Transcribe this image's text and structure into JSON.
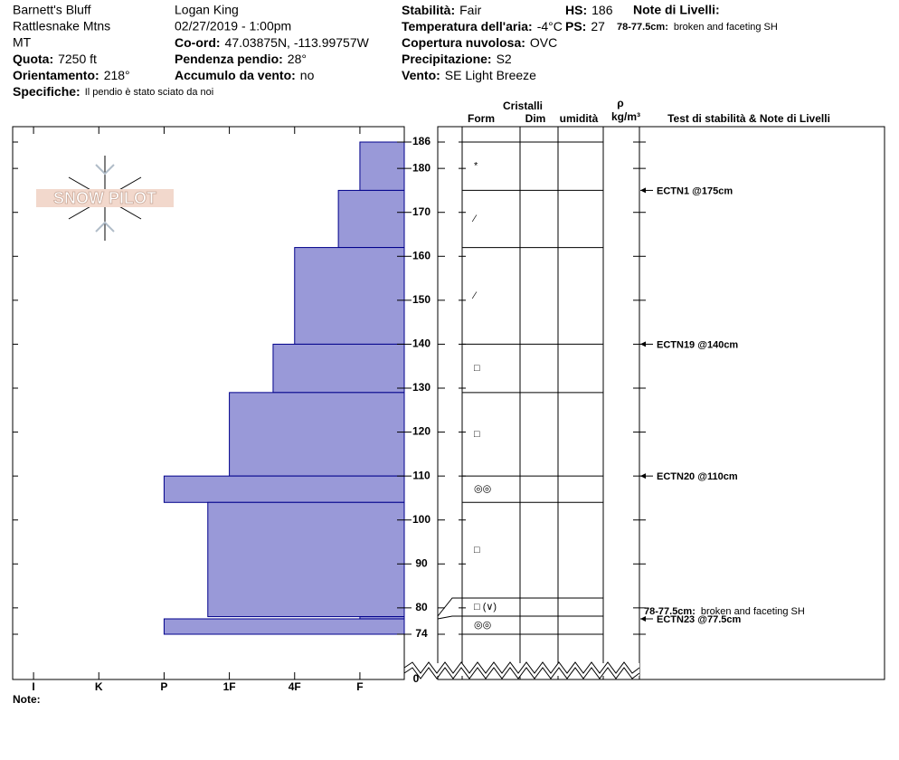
{
  "header": {
    "site": "Barnett's Bluff",
    "range": "Rattlesnake Mtns",
    "state": "MT",
    "observer": "Logan King",
    "datetime": "02/27/2019 - 1:00pm",
    "fields": [
      {
        "label": "Quota:",
        "value": "7250 ft"
      },
      {
        "label": "Orientamento:",
        "value": "218°"
      },
      {
        "label": "Specifiche:",
        "value": "Il pendio è stato sciato da noi"
      },
      {
        "label": "Co-ord:",
        "value": "47.03875N, -113.99757W"
      },
      {
        "label": "Pendenza pendio:",
        "value": "28°"
      },
      {
        "label": "Accumulo da vento:",
        "value": "no"
      },
      {
        "label": "Stabilità:",
        "value": "Fair"
      },
      {
        "label": "Temperatura dell'aria:",
        "value": "-4°C"
      },
      {
        "label": "Copertura nuvolosa:",
        "value": "OVC"
      },
      {
        "label": "Precipitazione:",
        "value": "S2"
      },
      {
        "label": "Vento:",
        "value": "SE Light Breeze"
      },
      {
        "label": "HS:",
        "value": "186"
      },
      {
        "label": "PS:",
        "value": "27"
      }
    ],
    "layer_notes_title": "Note di Livelli:",
    "layer_notes": [
      {
        "label": "78-77.5cm:",
        "text": "broken and faceting SH"
      }
    ]
  },
  "logo": "SNOW PILOT",
  "footer_note": "Note:",
  "chart_data": {
    "type": "snow_profile",
    "tops": [
      186,
      175,
      162,
      140,
      129,
      110,
      104,
      78,
      77.5
    ],
    "bottoms": [
      175,
      162,
      140,
      129,
      110,
      104,
      78,
      77.5,
      74
    ],
    "values": [
      1,
      1.33,
      2,
      2.33,
      3,
      4,
      3.33,
      1,
      4
    ],
    "color": "#9999d8",
    "xlim": [
      6.32,
      0.32
    ],
    "xticks": [
      {
        "value": 6,
        "label": "I"
      },
      {
        "value": 5,
        "label": "K"
      },
      {
        "value": 4,
        "label": "P"
      },
      {
        "value": 3,
        "label": "1F"
      },
      {
        "value": 2,
        "label": "4F"
      },
      {
        "value": 1,
        "label": "F"
      }
    ],
    "ylim": [
      74,
      186
    ],
    "yticks": [
      186,
      180,
      170,
      160,
      150,
      140,
      130,
      120,
      110,
      100,
      90,
      80,
      74
    ],
    "ybreak_tick": 0,
    "grain_forms": [
      "*",
      "⁄",
      "⁄",
      "□",
      "□",
      "◎◎",
      "□",
      "□ (∨)",
      "◎◎"
    ],
    "table_headers": {
      "crystals": "Cristalli",
      "form": "Form",
      "size": "Dim",
      "moisture": "umidità",
      "density": "ρ",
      "density_unit": "kg/m³",
      "tests": "Test di stabilità & Note di Livelli"
    },
    "stability_tests": [
      {
        "text": "ECTN1 @175cm",
        "height": 175
      },
      {
        "text": "ECTN19 @140cm",
        "height": 140
      },
      {
        "text": "ECTN20 @110cm",
        "height": 110
      },
      {
        "text": "ECTN23 @77.5cm",
        "height": 77.5
      }
    ]
  }
}
